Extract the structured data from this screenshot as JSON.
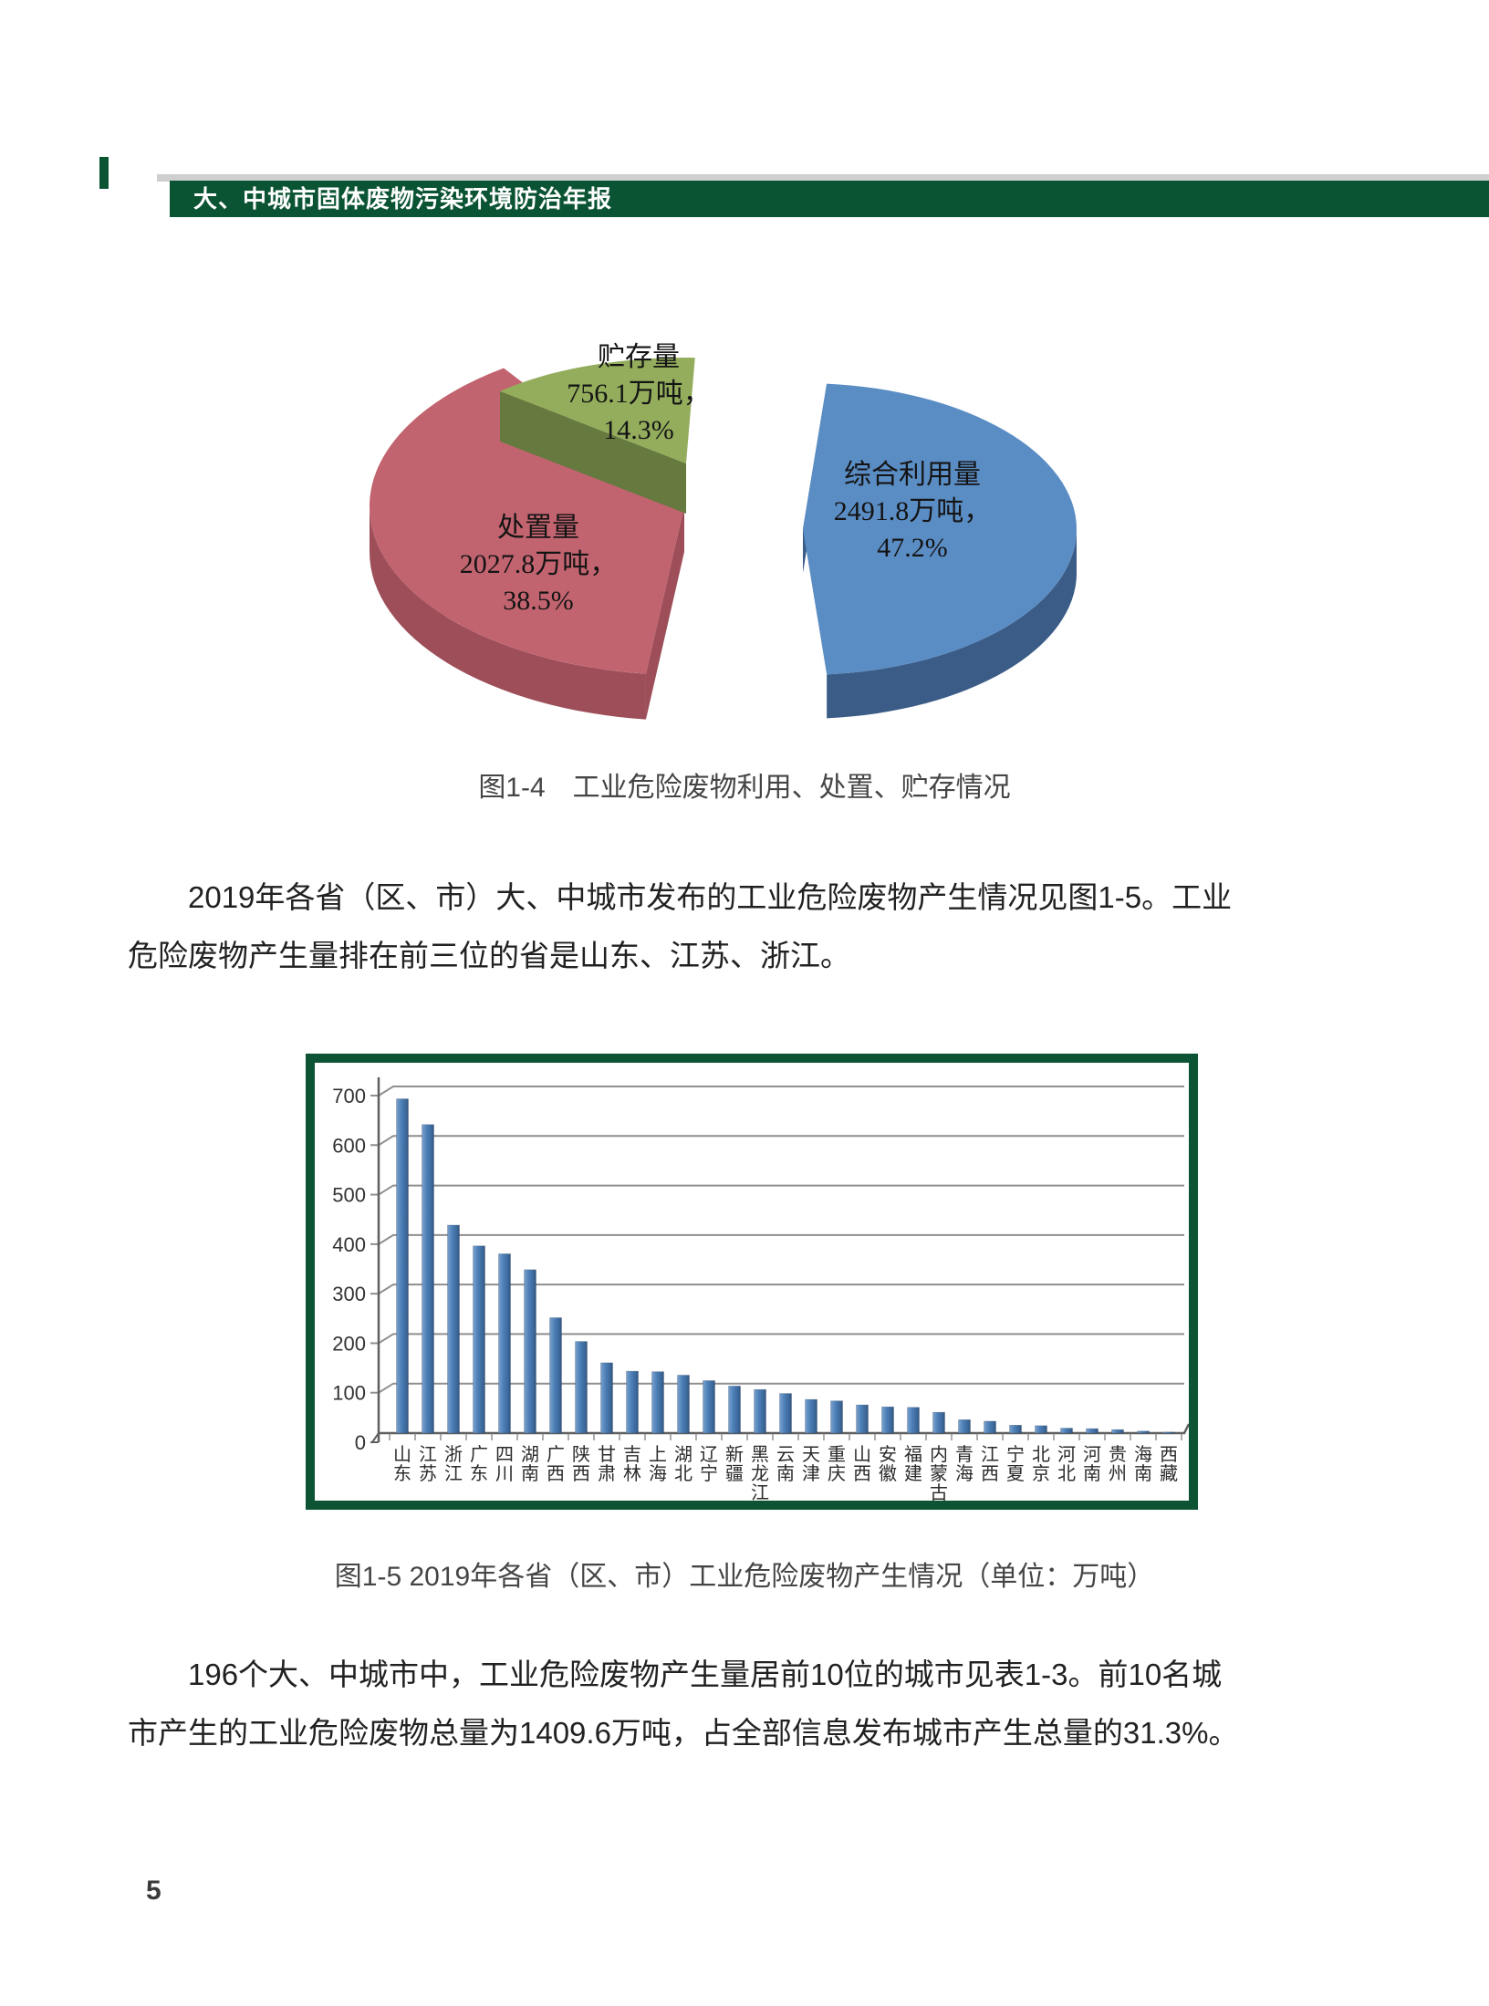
{
  "page": {
    "number": "5"
  },
  "header": {
    "title": "大、中城市固体废物污染环境防治年报"
  },
  "figures": {
    "fig1_caption": "图1-4　工业危险废物利用、处置、贮存情况",
    "fig2_caption": "图1-5 2019年各省（区、市）工业危险废物产生情况（单位：万吨）"
  },
  "paragraphs": {
    "p1_lines": [
      "2019年各省（区、市）大、中城市发布的工业危险废物产生情况见图1-5。工业",
      "危险废物产生量排在前三位的省是山东、江苏、浙江。"
    ],
    "p2_lines": [
      "196个大、中城市中，工业危险废物产生量居前10位的城市见表1-3。前10名城",
      "市产生的工业危险废物总量为1409.6万吨，占全部信息发布城市产生总量的31.3%。"
    ]
  },
  "colors": {
    "header_green": "#0b5433",
    "frame_green": "#0d5434",
    "gray_strip": "#cfcfcf",
    "bar_blue": "#4d80b8",
    "grid_gray": "#8f8f8f",
    "axis_gray": "#5f5f5f"
  },
  "chart_data": [
    {
      "type": "pie",
      "title": "图1-4 工业危险废物利用、处置、贮存情况",
      "unit": "万吨",
      "legend_position": "none",
      "slices": [
        {
          "label": "综合利用量",
          "value": 2491.8,
          "value_label": "2491.8万吨，",
          "pct": 47.2,
          "pct_label": "47.2%",
          "color": "#5b8dc5",
          "side_color": "#3a5c87"
        },
        {
          "label": "处置量",
          "value": 2027.8,
          "value_label": "2027.8万吨，",
          "pct": 38.5,
          "pct_label": "38.5%",
          "color": "#c2646f",
          "side_color": "#9d4e59"
        },
        {
          "label": "贮存量",
          "value": 756.1,
          "value_label": "756.1万吨，",
          "pct": 14.3,
          "pct_label": "14.3%",
          "color": "#93ad5c",
          "side_color": "#66793f"
        }
      ]
    },
    {
      "type": "bar",
      "title": "图1-5 2019年各省（区、市）工业危险废物产生情况（单位：万吨）",
      "unit": "万吨",
      "grid": true,
      "ylim": [
        0,
        700
      ],
      "yticks": [
        0,
        100,
        200,
        300,
        400,
        500,
        600,
        700
      ],
      "bar_color": "#4d80b8",
      "categories": [
        "山东",
        "江苏",
        "浙江",
        "广东",
        "四川",
        "湖南",
        "广西",
        "陕西",
        "甘肃",
        "吉林",
        "上海",
        "湖北",
        "辽宁",
        "新疆",
        "黑龙江",
        "云南",
        "天津",
        "重庆",
        "山西",
        "安徽",
        "福建",
        "内蒙古",
        "青海",
        "江西",
        "宁夏",
        "北京",
        "河北",
        "河南",
        "贵州",
        "海南",
        "西藏"
      ],
      "values": [
        675,
        623,
        420,
        378,
        362,
        330,
        233,
        185,
        142,
        125,
        124,
        117,
        106,
        95,
        88,
        80,
        68,
        65,
        57,
        53,
        52,
        42,
        27,
        24,
        16,
        15,
        10,
        9,
        7,
        4,
        2
      ]
    }
  ]
}
